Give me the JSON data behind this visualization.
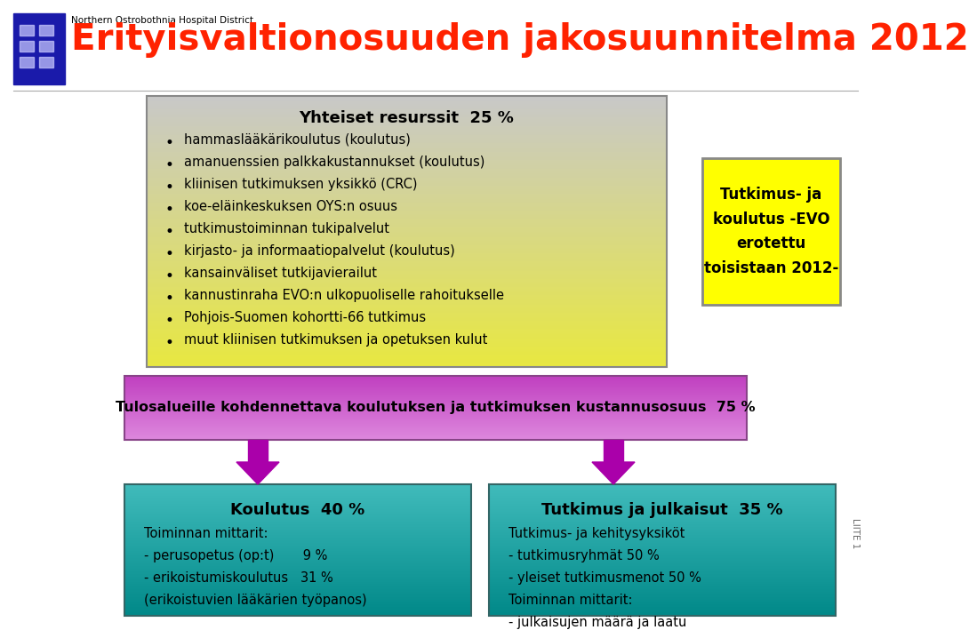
{
  "title": "Erityisvaltionosuuden jakosuunnitelma 2012",
  "org_name": "Northern Ostrobothnia Hospital District",
  "header_color": "#ff2200",
  "bg_color": "#ffffff",
  "box1_title": "Yhteiset resurssit  25 %",
  "box1_bullets": [
    "hammaslääkärikoulutus (koulutus)",
    "amanuenssien palkkakustannukset (koulutus)",
    "kliinisen tutkimuksen yksikkö (CRC)",
    "koe-eläinkeskuksen OYS:n osuus",
    "tutkimustoiminnan tukipalvelut",
    "kirjasto- ja informaatiopalvelut (koulutus)",
    "kansainväliset tutkijavierailut",
    "kannustinraha EVO:n ulkopuoliselle rahoitukselle",
    "Pohjois-Suomen kohortti-66 tutkimus",
    "muut kliinisen tutkimuksen ja opetuksen kulut"
  ],
  "box1_bg_top": "#c8c8c8",
  "box1_bg_bottom": "#e8e840",
  "box1_border": "#888888",
  "box2_title": "Tutkimus- ja\nkoulutus -EVO\nerotettu\ntoisistaan 2012-",
  "box2_bg": "#ffff00",
  "box2_border": "#888888",
  "box3_text": "Tulosalueille kohdennettava koulutuksen ja tutkimuksen kustannusosuus  75 %",
  "box3_bg_top": "#c040c0",
  "box3_bg_bottom": "#dd88dd",
  "box3_border": "#884488",
  "box4_title": "Koulutus  40 %",
  "box4_lines": [
    "Toiminnan mittarit:",
    "- perusopetus (op:t)       9 %",
    "- erikoistumiskoulutus   31 %",
    "(erikoistuvien lääkärien työpanos)"
  ],
  "box4_bg_top": "#40bbbb",
  "box4_bg_bottom": "#008888",
  "box4_border": "#336666",
  "box5_title": "Tutkimus ja julkaisut  35 %",
  "box5_lines": [
    "Tutkimus- ja kehitysyksiköt",
    "- tutkimusryhmät 50 %",
    "- yleiset tutkimusmenot 50 %",
    "Toiminnan mittarit:",
    "- julkaisujen määrä ja laatu"
  ],
  "box5_bg_top": "#40bbbb",
  "box5_bg_bottom": "#008888",
  "box5_border": "#336666",
  "arrow_color": "#aa00aa",
  "text_dark": "#000000"
}
